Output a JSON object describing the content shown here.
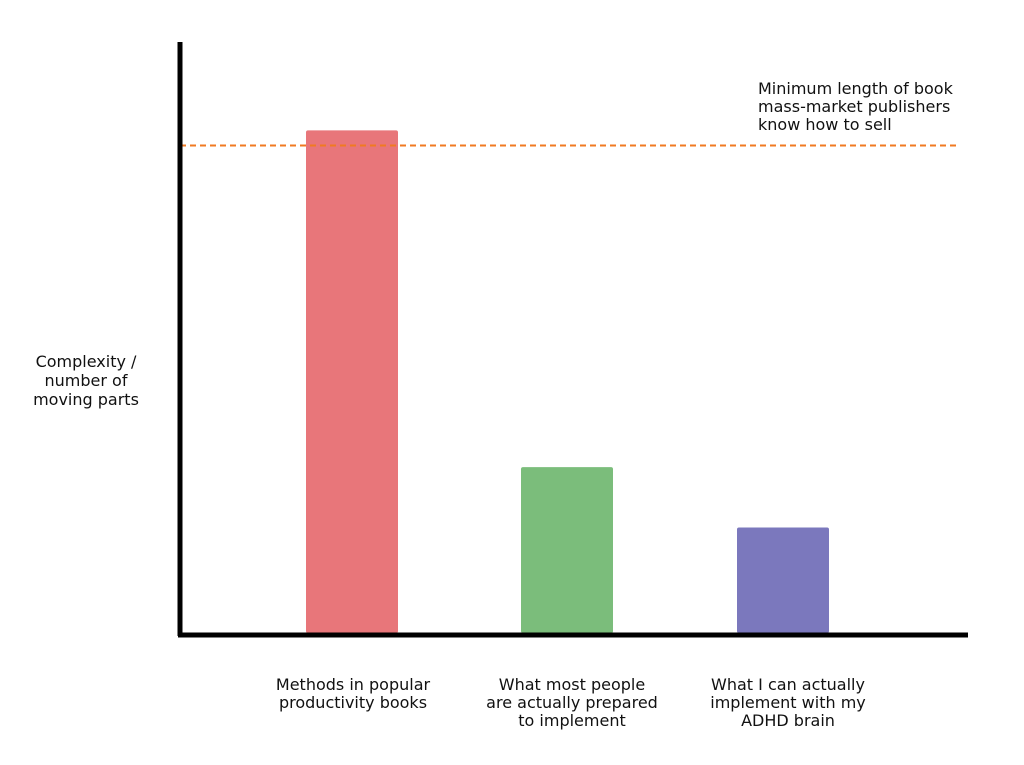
{
  "chart_data": {
    "type": "bar",
    "title": "",
    "xlabel": "",
    "ylabel_lines": [
      "Complexity /",
      "number of",
      "moving parts"
    ],
    "categories": [
      [
        "Methods in popular",
        "productivity books"
      ],
      [
        "What most people",
        "are actually prepared",
        "to implement"
      ],
      [
        "What I can actually",
        "implement with my",
        "ADHD brain"
      ]
    ],
    "values": [
      100,
      33,
      21
    ],
    "ylim": [
      0,
      117
    ],
    "bar_colors": [
      "#e8767a",
      "#7bbd7b",
      "#7b78bd"
    ],
    "grid": false,
    "reference_line": {
      "value": 97,
      "color": "#f07a22",
      "style": "dashed",
      "label_lines": [
        "Minimum length of book",
        "mass-market publishers",
        "know how to sell"
      ]
    }
  },
  "colors": {
    "axis": "#000000",
    "background": "#ffffff",
    "text": "#111111"
  }
}
